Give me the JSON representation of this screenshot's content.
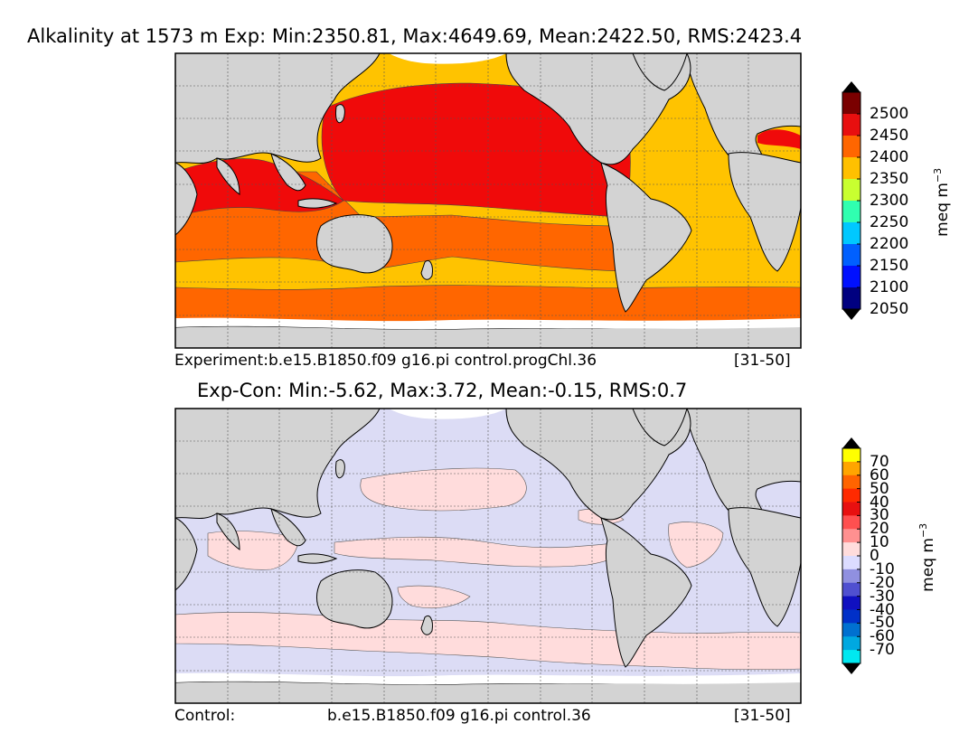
{
  "top_panel": {
    "title": "Alkalinity at 1573 m Exp: Min:2350.81, Max:4649.69, Mean:2422.50, RMS:2423.4",
    "caption_left": "Experiment:b.e15.B1850.f09 g16.pi control.progChl.36",
    "caption_right": "[31-50]",
    "colorbar": {
      "label": "meq m",
      "label_exp": "−3",
      "ticks": [
        "2500",
        "2450",
        "2400",
        "2350",
        "2300",
        "2250",
        "2200",
        "2150",
        "2100",
        "2050"
      ],
      "colors": [
        "#7a0000",
        "#e80f0f",
        "#ff6600",
        "#ffc000",
        "#c8ff30",
        "#30ffb0",
        "#00c8ff",
        "#0060ff",
        "#0010ff",
        "#000080"
      ],
      "over_color": "#000000",
      "under_color": "#000000"
    },
    "colors": {
      "ocean_red": "#f00a0a",
      "ocean_orange": "#ff6600",
      "ocean_yellow": "#ffc300",
      "land": "#d3d3d3",
      "ice": "#ffffff"
    }
  },
  "bottom_panel": {
    "title": "Exp-Con: Min:-5.62, Max:3.72, Mean:-0.15, RMS:0.7",
    "caption_left": "Control:",
    "caption_center": "b.e15.B1850.f09 g16.pi control.36",
    "caption_right": "[31-50]",
    "colorbar": {
      "label": "meq m",
      "label_exp": "−3",
      "ticks": [
        "70",
        "60",
        "50",
        "40",
        "30",
        "20",
        "10",
        "0",
        "-10",
        "-20",
        "-30",
        "-40",
        "-50",
        "-60",
        "-70"
      ],
      "colors": [
        "#ffff00",
        "#ffa500",
        "#ff6400",
        "#ff2a00",
        "#e81010",
        "#ff5050",
        "#ff9090",
        "#ffdcdc",
        "#dcdcff",
        "#9090e0",
        "#5050d0",
        "#1010c0",
        "#0030c8",
        "#0070d0",
        "#00a8e0",
        "#00e8f0"
      ],
      "over_color": "#000000",
      "under_color": "#000000"
    },
    "colors": {
      "ocean_pink": "#ffdcdc",
      "ocean_lavender": "#dcdcf5",
      "land": "#d3d3d3",
      "ice": "#ffffff"
    }
  }
}
